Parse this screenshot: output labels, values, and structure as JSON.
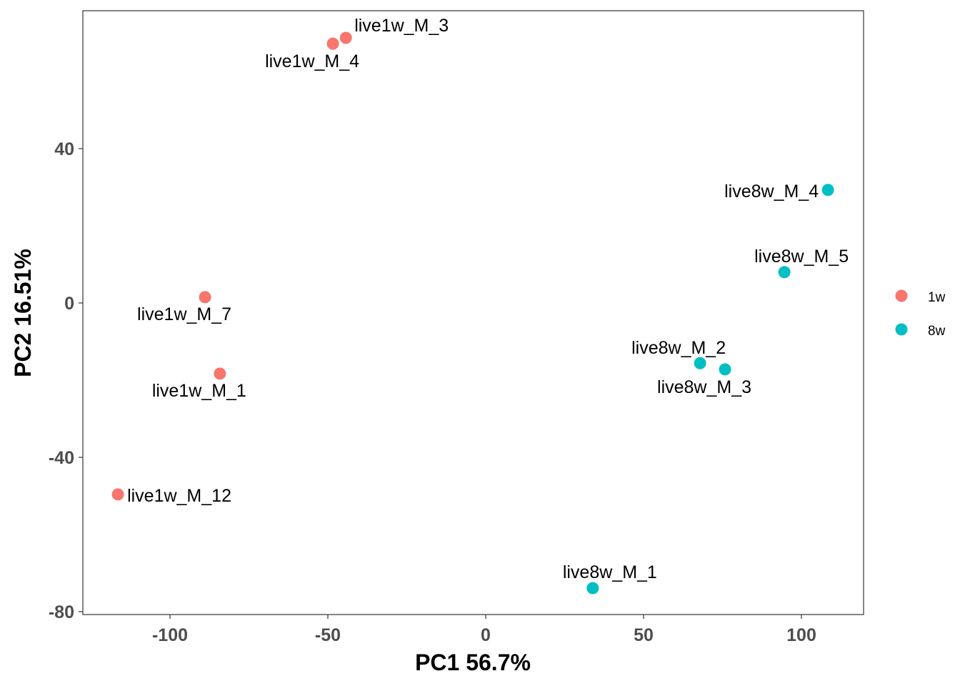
{
  "chart_data": {
    "type": "scatter",
    "title": "",
    "xlabel": "PC1 56.7%",
    "ylabel": "PC2 16.51%",
    "xlim": [
      -126,
      121
    ],
    "ylim": [
      -81,
      76
    ],
    "xticks": [
      -100,
      -50,
      0,
      50,
      100
    ],
    "yticks": [
      40,
      0,
      -40,
      -80
    ],
    "xtick_labels": [
      "-100",
      "-50",
      "0",
      "50",
      "100"
    ],
    "ytick_labels": [
      "40",
      "0",
      "-40",
      "-80"
    ],
    "grid": false,
    "legend_position": "right",
    "legend": [
      {
        "name": "1w",
        "color": "#F8766D"
      },
      {
        "name": "8w",
        "color": "#00BFC4"
      }
    ],
    "series": [
      {
        "name": "1w",
        "color": "#F8766D",
        "points": [
          {
            "label": "live1w_M_3",
            "x": -44.3,
            "y": 68.7,
            "anchor": "above-right"
          },
          {
            "label": "live1w_M_4",
            "x": -48.4,
            "y": 67.2,
            "anchor": "below"
          },
          {
            "label": "live1w_M_7",
            "x": -88.9,
            "y": 1.5,
            "anchor": "below-left"
          },
          {
            "label": "live1w_M_1",
            "x": -84.2,
            "y": -18.3,
            "anchor": "below-left"
          },
          {
            "label": "live1w_M_12",
            "x": -116.5,
            "y": -49.6,
            "anchor": "right"
          }
        ]
      },
      {
        "name": "8w",
        "color": "#00BFC4",
        "points": [
          {
            "label": "live8w_M_4",
            "x": 108.4,
            "y": 29.3,
            "anchor": "left"
          },
          {
            "label": "live8w_M_5",
            "x": 94.6,
            "y": 8.0,
            "anchor": "above"
          },
          {
            "label": "live8w_M_2",
            "x": 67.9,
            "y": -15.6,
            "anchor": "above-left"
          },
          {
            "label": "live8w_M_3",
            "x": 75.8,
            "y": -17.2,
            "anchor": "below"
          },
          {
            "label": "live8w_M_1",
            "x": 33.9,
            "y": -73.9,
            "anchor": "above"
          }
        ]
      }
    ]
  }
}
